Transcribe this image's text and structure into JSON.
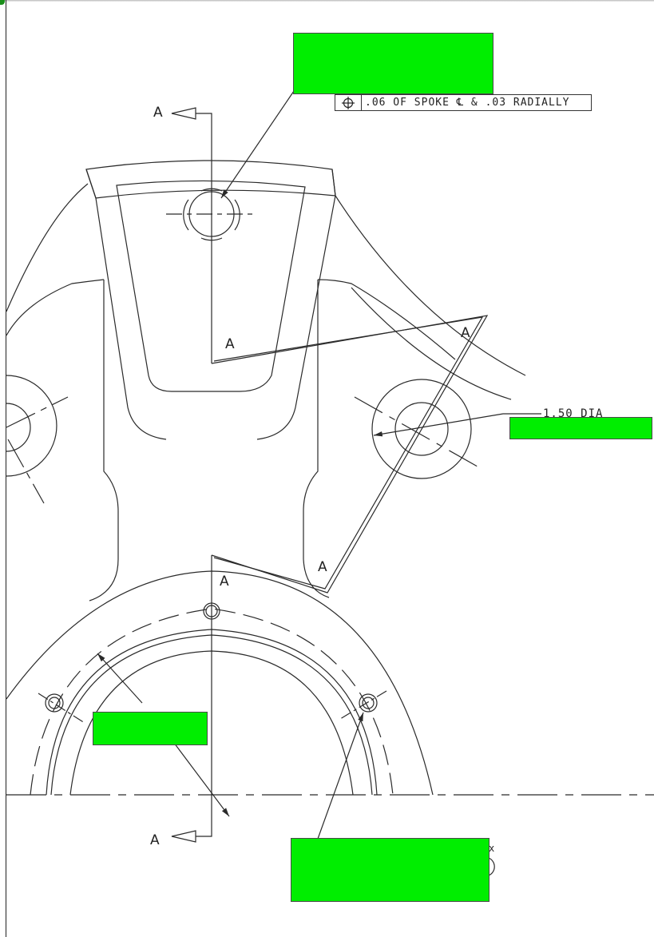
{
  "drawing": {
    "fcf_symbol": "position-icon",
    "fcf_text": ".06 OF SPOKE ℄ & .03 RADIALLY",
    "dim_dia": "1.50  DIA",
    "section_letter": "A",
    "labels": {
      "a_top_left": "A",
      "a_bottom_left": "A",
      "a_spoke_upper": "A",
      "a_triangle_top": "A",
      "a_triangle_bottom": "A",
      "a_hub_top": "A"
    },
    "mark_x": "x"
  },
  "colors": {
    "redaction": "#00ee00",
    "line": "#2a2a2a"
  }
}
